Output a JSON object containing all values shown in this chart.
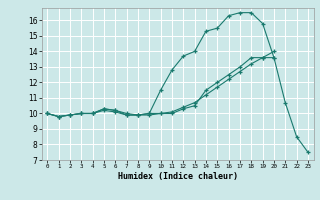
{
  "title": "",
  "xlabel": "Humidex (Indice chaleur)",
  "bg_color": "#cce8e8",
  "line_color": "#1a7a6e",
  "grid_color": "#ffffff",
  "xlim": [
    -0.5,
    23.5
  ],
  "ylim": [
    7,
    16.8
  ],
  "yticks": [
    7,
    8,
    9,
    10,
    11,
    12,
    13,
    14,
    15,
    16
  ],
  "xticks": [
    0,
    1,
    2,
    3,
    4,
    5,
    6,
    7,
    8,
    9,
    10,
    11,
    12,
    13,
    14,
    15,
    16,
    17,
    18,
    19,
    20,
    21,
    22,
    23
  ],
  "series": [
    {
      "x": [
        0,
        1,
        2,
        3,
        4,
        5,
        6,
        7,
        8,
        9,
        10,
        11,
        12,
        13,
        14,
        15,
        16,
        17,
        18,
        19,
        20,
        21,
        22,
        23
      ],
      "y": [
        10.0,
        9.8,
        9.9,
        10.0,
        10.0,
        10.3,
        10.2,
        10.0,
        9.9,
        10.0,
        11.5,
        12.8,
        13.7,
        14.0,
        15.3,
        15.5,
        16.3,
        16.5,
        16.5,
        15.8,
        13.6,
        10.7,
        8.5,
        7.5
      ]
    },
    {
      "x": [
        0,
        1,
        2,
        3,
        4,
        5,
        6,
        7,
        8,
        9,
        10,
        11,
        12,
        13,
        14,
        15,
        16,
        17,
        18,
        19,
        20
      ],
      "y": [
        10.0,
        9.8,
        9.9,
        10.0,
        10.0,
        10.3,
        10.2,
        9.9,
        9.9,
        9.9,
        10.0,
        10.0,
        10.3,
        10.5,
        11.5,
        12.0,
        12.5,
        13.0,
        13.6,
        13.6,
        13.6
      ]
    },
    {
      "x": [
        0,
        1,
        2,
        3,
        4,
        5,
        6,
        7,
        8,
        9,
        10,
        11,
        12,
        13,
        14,
        15,
        16,
        17,
        18,
        19,
        20
      ],
      "y": [
        10.0,
        9.8,
        9.9,
        10.0,
        10.0,
        10.2,
        10.1,
        9.9,
        9.9,
        10.0,
        10.0,
        10.1,
        10.4,
        10.7,
        11.2,
        11.7,
        12.2,
        12.7,
        13.2,
        13.6,
        14.0
      ]
    }
  ]
}
